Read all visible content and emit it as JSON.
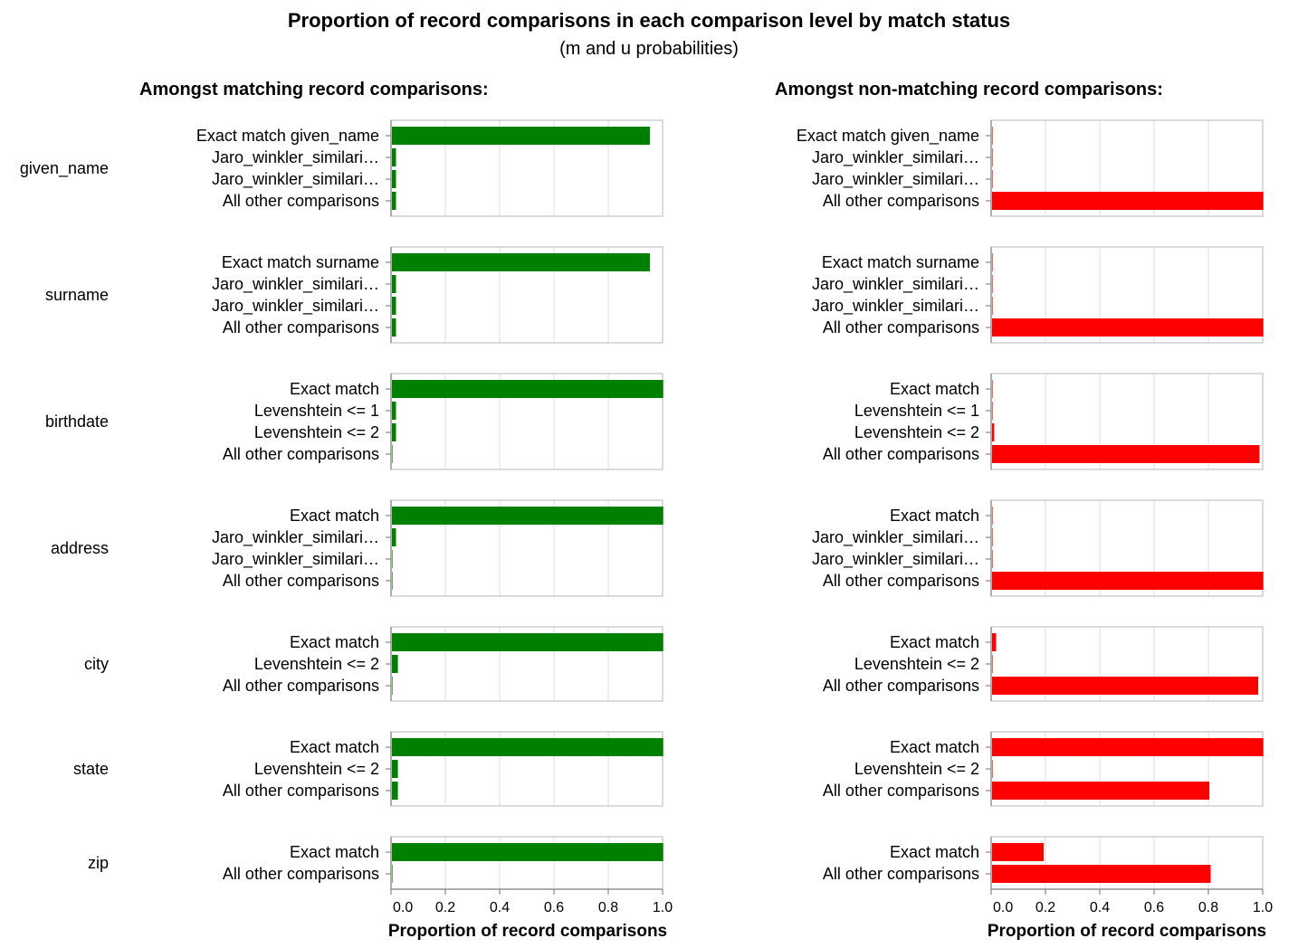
{
  "chart_data": {
    "type": "bar",
    "title": "Proportion of record comparisons in each comparison level by match status",
    "subtitle": "(m and u probabilities)",
    "colors": {
      "matching": "#008000",
      "non_matching": "#ff0000"
    },
    "panels": [
      {
        "key": "m",
        "header": "Amongst matching record comparisons:",
        "xlabel": "Proportion of record comparisons",
        "color_key": "matching"
      },
      {
        "key": "u",
        "header": "Amongst non-matching record comparisons:",
        "xlabel": "Proportion of record comparisons",
        "color_key": "non_matching"
      }
    ],
    "xlim": [
      0,
      1
    ],
    "xticks": [
      0,
      0.2,
      0.4,
      0.6,
      0.8,
      1
    ],
    "xtick_labels": [
      "0.0",
      "0.2",
      "0.4",
      "0.6",
      "0.8",
      "1.0"
    ],
    "grid": true,
    "comparisons": [
      {
        "name": "given_name",
        "levels": [
          {
            "label": "Exact match given_name",
            "m": 0.95,
            "u": 0.0005
          },
          {
            "label": "Jaro_winkler_similari…",
            "m": 0.015,
            "u": 0.0003
          },
          {
            "label": "Jaro_winkler_similari…",
            "m": 0.015,
            "u": 0.0003
          },
          {
            "label": "All other comparisons",
            "m": 0.015,
            "u": 0.999
          }
        ]
      },
      {
        "name": "surname",
        "levels": [
          {
            "label": "Exact match surname",
            "m": 0.95,
            "u": 0.0005
          },
          {
            "label": "Jaro_winkler_similari…",
            "m": 0.015,
            "u": 0.0003
          },
          {
            "label": "Jaro_winkler_similari…",
            "m": 0.015,
            "u": 0.0003
          },
          {
            "label": "All other comparisons",
            "m": 0.015,
            "u": 0.999
          }
        ]
      },
      {
        "name": "birthdate",
        "levels": [
          {
            "label": "Exact match",
            "m": 0.999,
            "u": 0.0003
          },
          {
            "label": "Levenshtein <= 1",
            "m": 0.015,
            "u": 0.0003
          },
          {
            "label": "Levenshtein <= 2",
            "m": 0.015,
            "u": 0.008
          },
          {
            "label": "All other comparisons",
            "m": 0.001,
            "u": 0.985
          }
        ]
      },
      {
        "name": "address",
        "levels": [
          {
            "label": "Exact match",
            "m": 0.999,
            "u": 0.0003
          },
          {
            "label": "Jaro_winkler_similari…",
            "m": 0.015,
            "u": 0.0003
          },
          {
            "label": "Jaro_winkler_similari…",
            "m": 0.001,
            "u": 0.0003
          },
          {
            "label": "All other comparisons",
            "m": 0.001,
            "u": 0.999
          }
        ]
      },
      {
        "name": "city",
        "levels": [
          {
            "label": "Exact match",
            "m": 0.999,
            "u": 0.015
          },
          {
            "label": "Levenshtein <= 2",
            "m": 0.022,
            "u": 0.0003
          },
          {
            "label": "All other comparisons",
            "m": 0.001,
            "u": 0.98
          }
        ]
      },
      {
        "name": "state",
        "levels": [
          {
            "label": "Exact match",
            "m": 0.999,
            "u": 0.999
          },
          {
            "label": "Levenshtein <= 2",
            "m": 0.022,
            "u": 0.0003
          },
          {
            "label": "All other comparisons",
            "m": 0.022,
            "u": 0.8
          }
        ]
      },
      {
        "name": "zip",
        "levels": [
          {
            "label": "Exact match",
            "m": 0.999,
            "u": 0.19
          },
          {
            "label": "All other comparisons",
            "m": 0.001,
            "u": 0.805
          }
        ]
      }
    ]
  }
}
